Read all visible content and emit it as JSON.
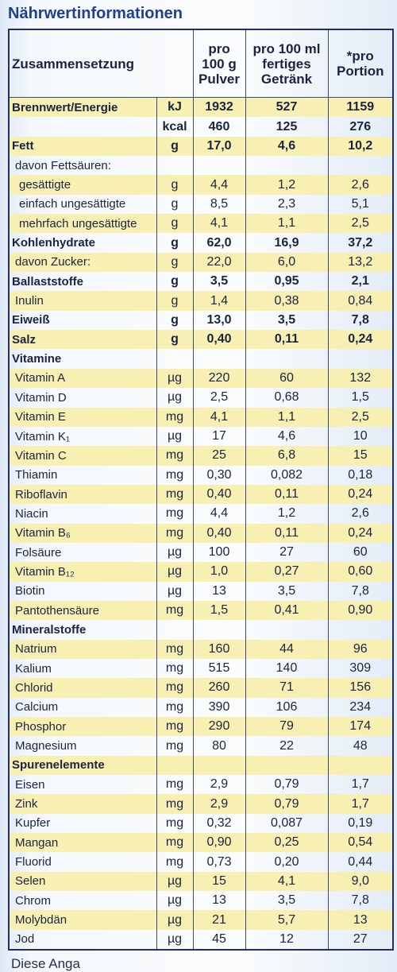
{
  "header": {
    "title": "Nährwertinformationen"
  },
  "table": {
    "columns": [
      "Zusammensetzung",
      "pro 100 g Pulver",
      "pro 100 ml fertiges Getränk",
      "*pro Portion"
    ],
    "rows": [
      {
        "name": "Brennwert/Energie",
        "unit": "kJ",
        "values": [
          "1932",
          "527",
          "1159"
        ],
        "bold": true
      },
      {
        "unit": "kcal",
        "values": [
          "460",
          "125",
          "276"
        ],
        "bold": true
      },
      {
        "name": "Fett",
        "unit": "g",
        "values": [
          "17,0",
          "4,6",
          "10,2"
        ],
        "bold": true
      },
      {
        "name": "davon Fettsäuren:"
      },
      {
        "name": "gesättigte",
        "unit": "g",
        "values": [
          "4,4",
          "1,2",
          "2,6"
        ],
        "sub": true
      },
      {
        "name": "einfach ungesättigte",
        "unit": "g",
        "values": [
          "8,5",
          "2,3",
          "5,1"
        ],
        "sub": true
      },
      {
        "name": "mehrfach ungesättigte",
        "unit": "g",
        "values": [
          "4,1",
          "1,1",
          "2,5"
        ],
        "sub": true
      },
      {
        "name": "Kohlenhydrate",
        "unit": "g",
        "values": [
          "62,0",
          "16,9",
          "37,2"
        ],
        "bold": true
      },
      {
        "name": "davon Zucker:",
        "unit": "g",
        "values": [
          "22,0",
          "6,0",
          "13,2"
        ]
      },
      {
        "name": "Ballaststoffe",
        "unit": "g",
        "values": [
          "3,5",
          "0,95",
          "2,1"
        ],
        "bold": true
      },
      {
        "name": "Inulin",
        "unit": "g",
        "values": [
          "1,4",
          "0,38",
          "0,84"
        ]
      },
      {
        "name": "Eiweiß",
        "unit": "g",
        "values": [
          "13,0",
          "3,5",
          "7,8"
        ],
        "bold": true
      },
      {
        "name": "Salz",
        "unit": "g",
        "values": [
          "0,40",
          "0,11",
          "0,24"
        ],
        "bold": true
      },
      {
        "name": "Vitamine",
        "bold": true
      },
      {
        "name": "Vitamin A",
        "unit": "µg",
        "values": [
          "220",
          "60",
          "132"
        ]
      },
      {
        "name": "Vitamin D",
        "unit": "µg",
        "values": [
          "2,5",
          "0,68",
          "1,5"
        ]
      },
      {
        "name": "Vitamin E",
        "unit": "mg",
        "values": [
          "4,1",
          "1,1",
          "2,5"
        ]
      },
      {
        "name": "Vitamin K₁",
        "unit": "µg",
        "values": [
          "17",
          "4,6",
          "10"
        ]
      },
      {
        "name": "Vitamin C",
        "unit": "mg",
        "values": [
          "25",
          "6,8",
          "15"
        ]
      },
      {
        "name": "Thiamin",
        "unit": "mg",
        "values": [
          "0,30",
          "0,082",
          "0,18"
        ]
      },
      {
        "name": "Riboflavin",
        "unit": "mg",
        "values": [
          "0,40",
          "0,11",
          "0,24"
        ]
      },
      {
        "name": "Niacin",
        "unit": "mg",
        "values": [
          "4,4",
          "1,2",
          "2,6"
        ]
      },
      {
        "name": "Vitamin B₆",
        "unit": "mg",
        "values": [
          "0,40",
          "0,11",
          "0,24"
        ]
      },
      {
        "name": "Folsäure",
        "unit": "µg",
        "values": [
          "100",
          "27",
          "60"
        ]
      },
      {
        "name": "Vitamin B₁₂",
        "unit": "µg",
        "values": [
          "1,0",
          "0,27",
          "0,60"
        ]
      },
      {
        "name": "Biotin",
        "unit": "µg",
        "values": [
          "13",
          "3,5",
          "7,8"
        ]
      },
      {
        "name": "Pantothensäure",
        "unit": "mg",
        "values": [
          "1,5",
          "0,41",
          "0,90"
        ]
      },
      {
        "name": "Mineralstoffe",
        "bold": true
      },
      {
        "name": "Natrium",
        "unit": "mg",
        "values": [
          "160",
          "44",
          "96"
        ]
      },
      {
        "name": "Kalium",
        "unit": "mg",
        "values": [
          "515",
          "140",
          "309"
        ]
      },
      {
        "name": "Chlorid",
        "unit": "mg",
        "values": [
          "260",
          "71",
          "156"
        ]
      },
      {
        "name": "Calcium",
        "unit": "mg",
        "values": [
          "390",
          "106",
          "234"
        ]
      },
      {
        "name": "Phosphor",
        "unit": "mg",
        "values": [
          "290",
          "79",
          "174"
        ]
      },
      {
        "name": "Magnesium",
        "unit": "mg",
        "values": [
          "80",
          "22",
          "48"
        ]
      },
      {
        "name": "Spurenelemente",
        "bold": true
      },
      {
        "name": "Eisen",
        "unit": "mg",
        "values": [
          "2,9",
          "0,79",
          "1,7"
        ]
      },
      {
        "name": "Zink",
        "unit": "mg",
        "values": [
          "2,9",
          "0,79",
          "1,7"
        ]
      },
      {
        "name": "Kupfer",
        "unit": "mg",
        "values": [
          "0,32",
          "0,087",
          "0,19"
        ]
      },
      {
        "name": "Mangan",
        "unit": "mg",
        "values": [
          "0,90",
          "0,25",
          "0,54"
        ]
      },
      {
        "name": "Fluorid",
        "unit": "mg",
        "values": [
          "0,73",
          "0,20",
          "0,44"
        ]
      },
      {
        "name": "Selen",
        "unit": "µg",
        "values": [
          "15",
          "4,1",
          "9,0"
        ]
      },
      {
        "name": "Chrom",
        "unit": "µg",
        "values": [
          "13",
          "3,5",
          "7,8"
        ]
      },
      {
        "name": "Molybdän",
        "unit": "µg",
        "values": [
          "21",
          "5,7",
          "13"
        ]
      },
      {
        "name": "Jod",
        "unit": "µg",
        "values": [
          "45",
          "12",
          "27"
        ]
      }
    ]
  },
  "footer": {
    "text": "Diese Anga"
  }
}
